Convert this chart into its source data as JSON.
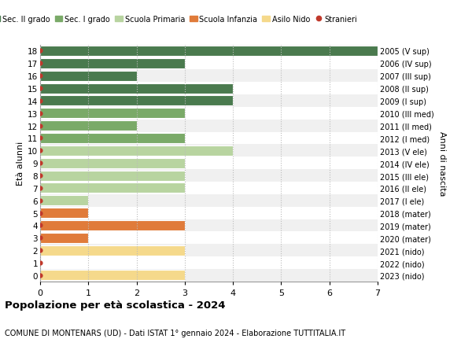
{
  "ages": [
    18,
    17,
    16,
    15,
    14,
    13,
    12,
    11,
    10,
    9,
    8,
    7,
    6,
    5,
    4,
    3,
    2,
    1,
    0
  ],
  "right_labels": [
    "2005 (V sup)",
    "2006 (IV sup)",
    "2007 (III sup)",
    "2008 (II sup)",
    "2009 (I sup)",
    "2010 (III med)",
    "2011 (II med)",
    "2012 (I med)",
    "2013 (V ele)",
    "2014 (IV ele)",
    "2015 (III ele)",
    "2016 (II ele)",
    "2017 (I ele)",
    "2018 (mater)",
    "2019 (mater)",
    "2020 (mater)",
    "2021 (nido)",
    "2022 (nido)",
    "2023 (nido)"
  ],
  "values": [
    7,
    3,
    2,
    4,
    4,
    3,
    2,
    3,
    4,
    3,
    3,
    3,
    1,
    1,
    3,
    1,
    3,
    0,
    3
  ],
  "colors": [
    "#4a7a4e",
    "#4a7a4e",
    "#4a7a4e",
    "#4a7a4e",
    "#4a7a4e",
    "#7aaa68",
    "#7aaa68",
    "#7aaa68",
    "#b8d4a0",
    "#b8d4a0",
    "#b8d4a0",
    "#b8d4a0",
    "#b8d4a0",
    "#e07b3a",
    "#e07b3a",
    "#e07b3a",
    "#f5d98b",
    "#f5d98b",
    "#f5d98b"
  ],
  "row_bg_even": "#f0f0f0",
  "row_bg_odd": "#ffffff",
  "stranieri": [
    1,
    1,
    1,
    1,
    1,
    1,
    1,
    1,
    1,
    1,
    1,
    1,
    1,
    1,
    1,
    1,
    1,
    1,
    1
  ],
  "legend_labels": [
    "Sec. II grado",
    "Sec. I grado",
    "Scuola Primaria",
    "Scuola Infanzia",
    "Asilo Nido",
    "Stranieri"
  ],
  "legend_colors": [
    "#4a7a4e",
    "#7aaa68",
    "#b8d4a0",
    "#e07b3a",
    "#f5d98b",
    "#c0392b"
  ],
  "title": "Popolazione per età scolastica - 2024",
  "subtitle": "COMUNE DI MONTENARS (UD) - Dati ISTAT 1° gennaio 2024 - Elaborazione TUTTITALIA.IT",
  "ylabel_left": "Età alunni",
  "ylabel_right": "Anni di nascita",
  "xlim": [
    0,
    7
  ],
  "xticks": [
    0,
    1,
    2,
    3,
    4,
    5,
    6,
    7
  ],
  "background_color": "#ffffff",
  "grid_color": "#bbbbbb",
  "bar_height": 0.82,
  "stranieri_color": "#c0392b",
  "stranieri_size": 4.5
}
